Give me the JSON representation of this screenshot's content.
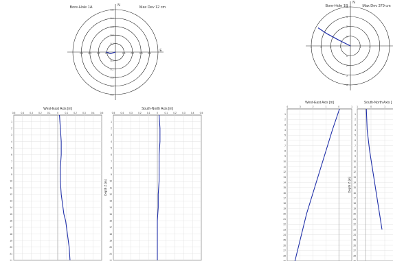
{
  "chart_data": [
    {
      "type": "polar",
      "title": "Bore-Hole 1A",
      "subtitle": "Max Dev 12 cm",
      "north_label": "N",
      "east_label": "E",
      "rings": [
        0.1,
        0.2,
        0.3,
        0.4,
        0.5
      ],
      "axis_ticks": [
        "0.4",
        "0.3",
        "0.2",
        "0.1",
        "0.1",
        "0.2",
        "0.3",
        "0.4"
      ],
      "vertical_ticks": [
        "0.5",
        "0.4",
        "0.3",
        "0.2",
        "0.1",
        "0.1",
        "0.2",
        "0.3",
        "0.4",
        "0.5"
      ],
      "trace": [
        [
          0,
          0
        ],
        [
          -0.03,
          -0.01
        ],
        [
          -0.06,
          -0.02
        ],
        [
          -0.08,
          -0.01
        ],
        [
          -0.11,
          0.0
        ]
      ],
      "color": "#1f2fa8"
    },
    {
      "type": "line",
      "title": "West-East Axis [m]",
      "xlim": [
        -0.5,
        0.5
      ],
      "xticks": [
        "0.5",
        "0.4",
        "0.3",
        "0.2",
        "0.1",
        "0",
        "0.1",
        "0.2",
        "0.3",
        "0.4",
        "0.5"
      ],
      "ylabel": "",
      "yticks": [
        "1",
        "2",
        "3",
        "4",
        "5",
        "6",
        "7",
        "8",
        "9",
        "10",
        "11",
        "12",
        "13",
        "14",
        "15",
        "16",
        "17",
        "18",
        "19",
        "20",
        "21",
        "22"
      ],
      "ylim": [
        0,
        22
      ],
      "series": [
        {
          "x": [
            0.02,
            0.03,
            0.04,
            0.04,
            0.03,
            0.03,
            0.04,
            0.05,
            0.06,
            0.07,
            0.09,
            0.11,
            0.13,
            0.14
          ],
          "y": [
            0,
            2,
            4,
            6,
            8,
            10,
            12,
            13,
            14,
            15,
            16,
            18,
            20,
            22
          ]
        }
      ],
      "color": "#1f2fa8"
    },
    {
      "type": "line",
      "title": "South-North Axis [m]",
      "xlim": [
        -0.5,
        0.5
      ],
      "xticks": [
        "0.5",
        "0.4",
        "0.3",
        "0.2",
        "0.1",
        "0",
        "0.1",
        "0.2",
        "0.3",
        "0.4",
        "0.5"
      ],
      "ylabel": "Depth Z [m]",
      "yticks": [
        "1",
        "2",
        "3",
        "4",
        "5",
        "6",
        "7",
        "8",
        "9",
        "10",
        "11",
        "12",
        "13",
        "14",
        "15",
        "16",
        "17",
        "18",
        "19",
        "20",
        "21",
        "22"
      ],
      "ylim": [
        0,
        22
      ],
      "series": [
        {
          "x": [
            0.02,
            0.03,
            0.03,
            0.02,
            0.02,
            0.02,
            0.01,
            0.01,
            0.0,
            0.0,
            0.0,
            0.0
          ],
          "y": [
            0,
            2,
            4,
            6,
            8,
            10,
            12,
            14,
            16,
            18,
            20,
            22
          ]
        }
      ],
      "color": "#1f2fa8"
    },
    {
      "type": "polar",
      "title": "Bore-Hole 1B",
      "subtitle": "Max Dev 379 cm",
      "north_label": "N",
      "east_label": "",
      "rings": [
        1,
        2,
        3,
        4
      ],
      "axis_ticks": [
        "4",
        "3",
        "2",
        "1",
        "1",
        "2"
      ],
      "vertical_ticks": [
        "4",
        "3",
        "2",
        "1",
        "1",
        "2",
        "3",
        "4"
      ],
      "trace": [
        [
          0,
          0
        ],
        [
          -1.2,
          0.6
        ],
        [
          -2.4,
          1.25
        ],
        [
          -3.3,
          1.85
        ]
      ],
      "color": "#1f2fa8"
    },
    {
      "type": "line",
      "title": "West-East Axis [m]",
      "xlim": [
        -4,
        1
      ],
      "xticks": [
        "4",
        "3",
        "2",
        "1",
        "0",
        "1"
      ],
      "ylabel": "",
      "yticks": [
        "1",
        "2",
        "3",
        "4",
        "5",
        "6",
        "7",
        "8",
        "9",
        "10",
        "11",
        "12",
        "13",
        "14",
        "15",
        "16",
        "17",
        "18",
        "19",
        "20",
        "21",
        "22",
        "23",
        "24",
        "25",
        "26",
        "27",
        "28",
        "29"
      ],
      "ylim": [
        0,
        29
      ],
      "series": [
        {
          "x": [
            0.05,
            -0.5,
            -1.0,
            -1.5,
            -2.0,
            -2.5,
            -3.0,
            -3.4
          ],
          "y": [
            0,
            4,
            8,
            12,
            16,
            20,
            25,
            29
          ]
        }
      ],
      "color": "#1f2fa8"
    },
    {
      "type": "line",
      "title": "South-North Axis [",
      "xlim": [
        -1,
        4
      ],
      "xticks": [
        "1",
        "0",
        "1",
        "2"
      ],
      "ylabel": "Depth Z [m]",
      "yticks": [
        "1",
        "2",
        "3",
        "4",
        "5",
        "6",
        "7",
        "8",
        "9",
        "10",
        "11",
        "12",
        "13",
        "14",
        "15",
        "16",
        "17",
        "18",
        "19",
        "20",
        "21",
        "22",
        "23",
        "24",
        "25",
        "26",
        "27",
        "28",
        "29"
      ],
      "ylim": [
        0,
        29
      ],
      "series": [
        {
          "x": [
            0.1,
            0.2,
            0.5,
            0.9,
            1.3,
            1.7,
            2.0
          ],
          "y": [
            0,
            4,
            8,
            12,
            16,
            20,
            23
          ]
        }
      ],
      "color": "#1f2fa8"
    }
  ]
}
